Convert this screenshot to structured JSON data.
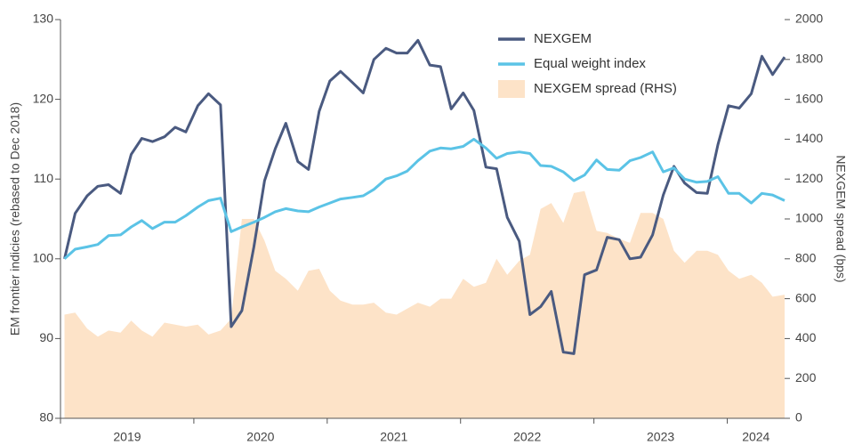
{
  "chart_data": {
    "type": "line",
    "x": [
      2019.03,
      2019.11,
      2019.2,
      2019.28,
      2019.36,
      2019.45,
      2019.53,
      2019.61,
      2019.69,
      2019.78,
      2019.86,
      2019.94,
      2020.03,
      2020.11,
      2020.2,
      2020.28,
      2020.36,
      2020.45,
      2020.53,
      2020.61,
      2020.69,
      2020.78,
      2020.86,
      2020.94,
      2021.02,
      2021.1,
      2021.19,
      2021.27,
      2021.35,
      2021.44,
      2021.52,
      2021.6,
      2021.68,
      2021.77,
      2021.85,
      2021.93,
      2022.02,
      2022.1,
      2022.19,
      2022.27,
      2022.35,
      2022.44,
      2022.52,
      2022.6,
      2022.68,
      2022.77,
      2022.85,
      2022.93,
      2023.02,
      2023.1,
      2023.19,
      2023.27,
      2023.35,
      2023.44,
      2023.52,
      2023.6,
      2023.68,
      2023.77,
      2023.85,
      2023.93,
      2024.01,
      2024.09,
      2024.18,
      2024.26,
      2024.34,
      2024.43
    ],
    "series": [
      {
        "name": "NEXGEM",
        "color": "#4a5a80",
        "kind": "line",
        "values": [
          100,
          105.7,
          107.9,
          109.1,
          109.3,
          108.2,
          113.1,
          115.1,
          114.7,
          115.3,
          116.5,
          115.9,
          119.2,
          120.7,
          119.3,
          91.5,
          93.5,
          101.5,
          109.8,
          113.8,
          117.0,
          112.2,
          111.2,
          118.5,
          122.3,
          123.5,
          122.1,
          120.8,
          125.0,
          126.4,
          125.8,
          125.8,
          127.4,
          124.3,
          124.1,
          118.8,
          120.8,
          118.6,
          111.5,
          111.3,
          105.2,
          102.2,
          93.0,
          94.0,
          95.9,
          88.3,
          88.1,
          98.0,
          98.6,
          102.7,
          102.4,
          100.0,
          100.2,
          103.0,
          108.0,
          111.6,
          109.5,
          108.3,
          108.2,
          114.3,
          119.2,
          118.9,
          120.7,
          125.4,
          123.1,
          125.3
        ]
      },
      {
        "name": "Equal weight index",
        "color": "#5bc3e6",
        "kind": "line",
        "values": [
          100,
          101.2,
          101.5,
          101.8,
          102.9,
          103.0,
          104.0,
          104.8,
          103.8,
          104.6,
          104.6,
          105.4,
          106.5,
          107.3,
          107.6,
          103.4,
          104.0,
          104.6,
          105.2,
          105.9,
          106.3,
          106.0,
          105.9,
          106.5,
          107.0,
          107.5,
          107.7,
          107.9,
          108.7,
          110.0,
          110.4,
          111.0,
          112.3,
          113.5,
          113.9,
          113.8,
          114.1,
          115.0,
          113.9,
          112.6,
          113.2,
          113.4,
          113.2,
          111.7,
          111.6,
          110.9,
          109.8,
          110.5,
          112.4,
          111.2,
          111.1,
          112.3,
          112.7,
          113.4,
          110.9,
          111.4,
          110.0,
          109.6,
          109.7,
          110.3,
          108.2,
          108.2,
          107.0,
          108.2,
          108.0,
          107.3
        ]
      },
      {
        "name": "NEXGEM spread (RHS)",
        "color": "#fde3c8",
        "kind": "area",
        "axis": "y2",
        "values": [
          520,
          530,
          450,
          410,
          440,
          430,
          490,
          440,
          410,
          480,
          470,
          460,
          470,
          420,
          440,
          500,
          1000,
          1000,
          890,
          740,
          700,
          640,
          740,
          750,
          640,
          590,
          570,
          570,
          580,
          530,
          520,
          550,
          580,
          560,
          600,
          600,
          700,
          660,
          680,
          800,
          720,
          790,
          820,
          1050,
          1080,
          980,
          1130,
          1140,
          940,
          930,
          900,
          880,
          1030,
          1030,
          1000,
          840,
          780,
          840,
          840,
          820,
          740,
          700,
          720,
          680,
          610,
          620
        ]
      }
    ],
    "xlim": [
      2019,
      2024.43
    ],
    "xticks": [
      {
        "value": 2019,
        "label": "2019"
      },
      {
        "value": 2020,
        "label": "2020"
      },
      {
        "value": 2021,
        "label": "2021"
      },
      {
        "value": 2022,
        "label": "2022"
      },
      {
        "value": 2023,
        "label": "2023"
      },
      {
        "value": 2024,
        "label": "2024"
      }
    ],
    "ylim": [
      80,
      130
    ],
    "yticks": [
      80,
      90,
      100,
      110,
      120,
      130
    ],
    "y2lim": [
      0,
      2000
    ],
    "y2ticks": [
      0,
      200,
      400,
      600,
      800,
      1000,
      1200,
      1400,
      1600,
      1800,
      2000
    ],
    "ylabel": "EM frontier indicies (rebased to Dec 2018)",
    "y2label": "NEXGEM spread (bps)",
    "legend": "upper center",
    "grid": false
  }
}
